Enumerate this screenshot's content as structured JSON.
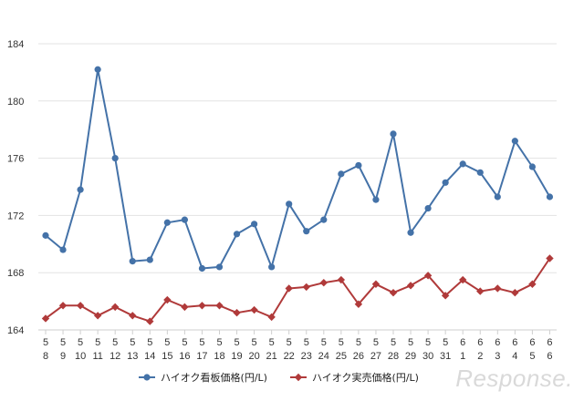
{
  "chart_data": {
    "type": "line",
    "categories": [
      {
        "month": "5",
        "day": "8"
      },
      {
        "month": "5",
        "day": "9"
      },
      {
        "month": "5",
        "day": "10"
      },
      {
        "month": "5",
        "day": "11"
      },
      {
        "month": "5",
        "day": "12"
      },
      {
        "month": "5",
        "day": "13"
      },
      {
        "month": "5",
        "day": "14"
      },
      {
        "month": "5",
        "day": "15"
      },
      {
        "month": "5",
        "day": "16"
      },
      {
        "month": "5",
        "day": "17"
      },
      {
        "month": "5",
        "day": "18"
      },
      {
        "month": "5",
        "day": "19"
      },
      {
        "month": "5",
        "day": "20"
      },
      {
        "month": "5",
        "day": "21"
      },
      {
        "month": "5",
        "day": "22"
      },
      {
        "month": "5",
        "day": "23"
      },
      {
        "month": "5",
        "day": "24"
      },
      {
        "month": "5",
        "day": "25"
      },
      {
        "month": "5",
        "day": "26"
      },
      {
        "month": "5",
        "day": "27"
      },
      {
        "month": "5",
        "day": "28"
      },
      {
        "month": "5",
        "day": "29"
      },
      {
        "month": "5",
        "day": "30"
      },
      {
        "month": "5",
        "day": "31"
      },
      {
        "month": "6",
        "day": "1"
      },
      {
        "month": "6",
        "day": "2"
      },
      {
        "month": "6",
        "day": "3"
      },
      {
        "month": "6",
        "day": "4"
      },
      {
        "month": "6",
        "day": "5"
      },
      {
        "month": "6",
        "day": "6"
      }
    ],
    "series": [
      {
        "name": "ハイオク看板価格(円/L)",
        "color": "#4472a8",
        "marker": "circle",
        "values": [
          170.6,
          169.6,
          173.8,
          182.2,
          176.0,
          168.8,
          168.9,
          171.5,
          171.7,
          168.3,
          168.4,
          170.7,
          171.4,
          168.4,
          172.8,
          170.9,
          171.7,
          174.9,
          175.5,
          173.1,
          177.7,
          170.8,
          172.5,
          174.3,
          175.6,
          175.0,
          173.3,
          177.2,
          175.4,
          173.3
        ]
      },
      {
        "name": "ハイオク実売価格(円/L)",
        "color": "#b03a3a",
        "marker": "diamond",
        "values": [
          164.8,
          165.7,
          165.7,
          165.0,
          165.6,
          165.0,
          164.6,
          166.1,
          165.6,
          165.7,
          165.7,
          165.2,
          165.4,
          164.9,
          166.9,
          167.0,
          167.3,
          167.5,
          165.8,
          167.2,
          166.6,
          167.1,
          167.8,
          166.4,
          167.5,
          166.7,
          166.9,
          166.6,
          167.2,
          169.0
        ]
      }
    ],
    "yticks": [
      164,
      168,
      172,
      176,
      180,
      184
    ],
    "ylim": [
      164,
      184
    ],
    "grid": true,
    "legend_position": "bottom-center"
  },
  "watermark": "Response."
}
